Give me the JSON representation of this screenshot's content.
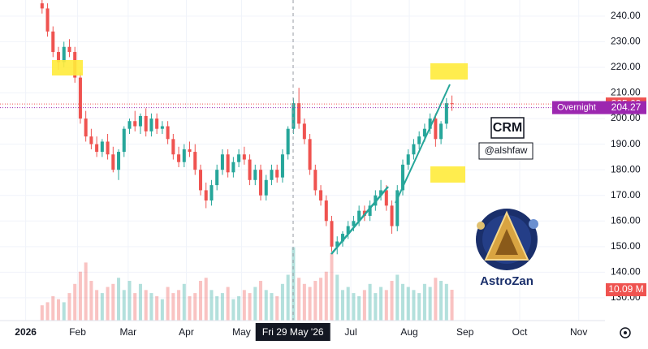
{
  "chart_data": {
    "type": "candlestick",
    "open": [
      245,
      243,
      234,
      226,
      222,
      228,
      226,
      216,
      200,
      193,
      190,
      187,
      191,
      186,
      180,
      187,
      196,
      199,
      197,
      201,
      195,
      200,
      196,
      197,
      192,
      186,
      183,
      188,
      187,
      180,
      172,
      168,
      174,
      180,
      186,
      179,
      183,
      186,
      184,
      176,
      180,
      170,
      176,
      180,
      177,
      186,
      196,
      206,
      198,
      192,
      180,
      172,
      168,
      160,
      150,
      152,
      155,
      158,
      160,
      164,
      162,
      166,
      170,
      172,
      166,
      158,
      172,
      182,
      186,
      190,
      193,
      196,
      200,
      192,
      198,
      206
    ],
    "high": [
      247,
      245,
      236,
      228,
      230,
      231,
      228,
      218,
      203,
      196,
      193,
      192,
      194,
      189,
      188,
      197,
      200,
      203,
      202,
      204,
      202,
      202,
      199,
      199,
      194,
      189,
      190,
      191,
      190,
      182,
      175,
      176,
      182,
      188,
      188,
      185,
      188,
      189,
      186,
      182,
      182,
      178,
      182,
      182,
      188,
      197,
      208,
      212,
      200,
      194,
      182,
      174,
      170,
      162,
      154,
      156,
      160,
      162,
      166,
      166,
      168,
      172,
      176,
      174,
      168,
      174,
      184,
      188,
      192,
      195,
      198,
      202,
      202,
      199,
      208,
      209
    ],
    "low": [
      241,
      232,
      224,
      219,
      220,
      224,
      214,
      198,
      191,
      188,
      185,
      185,
      184,
      179,
      176,
      185,
      194,
      195,
      194,
      193,
      193,
      194,
      194,
      190,
      184,
      181,
      181,
      185,
      178,
      170,
      165,
      166,
      172,
      178,
      177,
      177,
      181,
      182,
      174,
      174,
      168,
      168,
      174,
      175,
      175,
      184,
      194,
      196,
      190,
      178,
      170,
      166,
      158,
      148,
      147,
      150,
      153,
      156,
      158,
      160,
      160,
      164,
      168,
      164,
      155,
      156,
      170,
      180,
      184,
      188,
      191,
      194,
      189,
      190,
      196,
      203
    ],
    "close": [
      243,
      234,
      226,
      222,
      228,
      226,
      216,
      200,
      193,
      190,
      187,
      191,
      186,
      180,
      187,
      196,
      199,
      197,
      201,
      195,
      200,
      196,
      197,
      192,
      186,
      183,
      188,
      187,
      180,
      172,
      168,
      174,
      180,
      186,
      179,
      183,
      186,
      184,
      176,
      180,
      170,
      176,
      180,
      177,
      186,
      196,
      206,
      198,
      192,
      180,
      172,
      168,
      160,
      150,
      152,
      155,
      158,
      160,
      164,
      162,
      166,
      170,
      172,
      166,
      158,
      172,
      182,
      186,
      190,
      193,
      196,
      200,
      192,
      198,
      206,
      205.69
    ],
    "volume": [
      5,
      6,
      8,
      7,
      6,
      9,
      12,
      16,
      19,
      13,
      10,
      9,
      11,
      12,
      14,
      10,
      13,
      9,
      12,
      10,
      9,
      8,
      7,
      11,
      9,
      10,
      12,
      8,
      9,
      13,
      14,
      10,
      8,
      9,
      11,
      7,
      8,
      10,
      9,
      11,
      13,
      10,
      9,
      8,
      12,
      15,
      24,
      14,
      12,
      11,
      13,
      14,
      16,
      22,
      15,
      10,
      11,
      9,
      8,
      10,
      12,
      9,
      11,
      10,
      13,
      15,
      12,
      11,
      10,
      9,
      12,
      11,
      14,
      13,
      12,
      10.09
    ],
    "colors": {
      "up": "#26a69a",
      "down": "#ef5350"
    },
    "xlim": [
      -7.7,
      103
    ],
    "ylim": [
      121.1,
      246.3
    ],
    "volume_ylim": [
      0,
      30
    ],
    "xticks": [
      {
        "value": -3,
        "label": "2026"
      },
      {
        "value": 6.5,
        "label": "Feb"
      },
      {
        "value": 15.75,
        "label": "Mar"
      },
      {
        "value": 26.4,
        "label": "Apr"
      },
      {
        "value": 36.5,
        "label": "May"
      },
      {
        "value": 56.5,
        "label": "Jul"
      },
      {
        "value": 67.2,
        "label": "Aug"
      },
      {
        "value": 77.4,
        "label": "Sep"
      },
      {
        "value": 87.4,
        "label": "Oct"
      },
      {
        "value": 98.2,
        "label": "Nov"
      }
    ],
    "yticks": [
      {
        "value": 130,
        "label": "130.00"
      },
      {
        "value": 140,
        "label": "140.00"
      },
      {
        "value": 150,
        "label": "150.00"
      },
      {
        "value": 160,
        "label": "160.00"
      },
      {
        "value": 170,
        "label": "170.00"
      },
      {
        "value": 180,
        "label": "180.00"
      },
      {
        "value": 190,
        "label": "190.00"
      },
      {
        "value": 200,
        "label": "200.00"
      },
      {
        "value": 210,
        "label": "210.00"
      },
      {
        "value": 220,
        "label": "220.00"
      },
      {
        "value": 230,
        "label": "230.00"
      },
      {
        "value": 240,
        "label": "240.00"
      }
    ],
    "crosshair": {
      "value": 45.9,
      "label": "Fri 29 May '26"
    },
    "overnight": {
      "label": "Overnight",
      "value": 204.27
    },
    "last_volume_label": "10.09 M",
    "annotations": {
      "ticker": "CRM",
      "handle": "@alshfaw",
      "brand": "AstroZan"
    }
  }
}
